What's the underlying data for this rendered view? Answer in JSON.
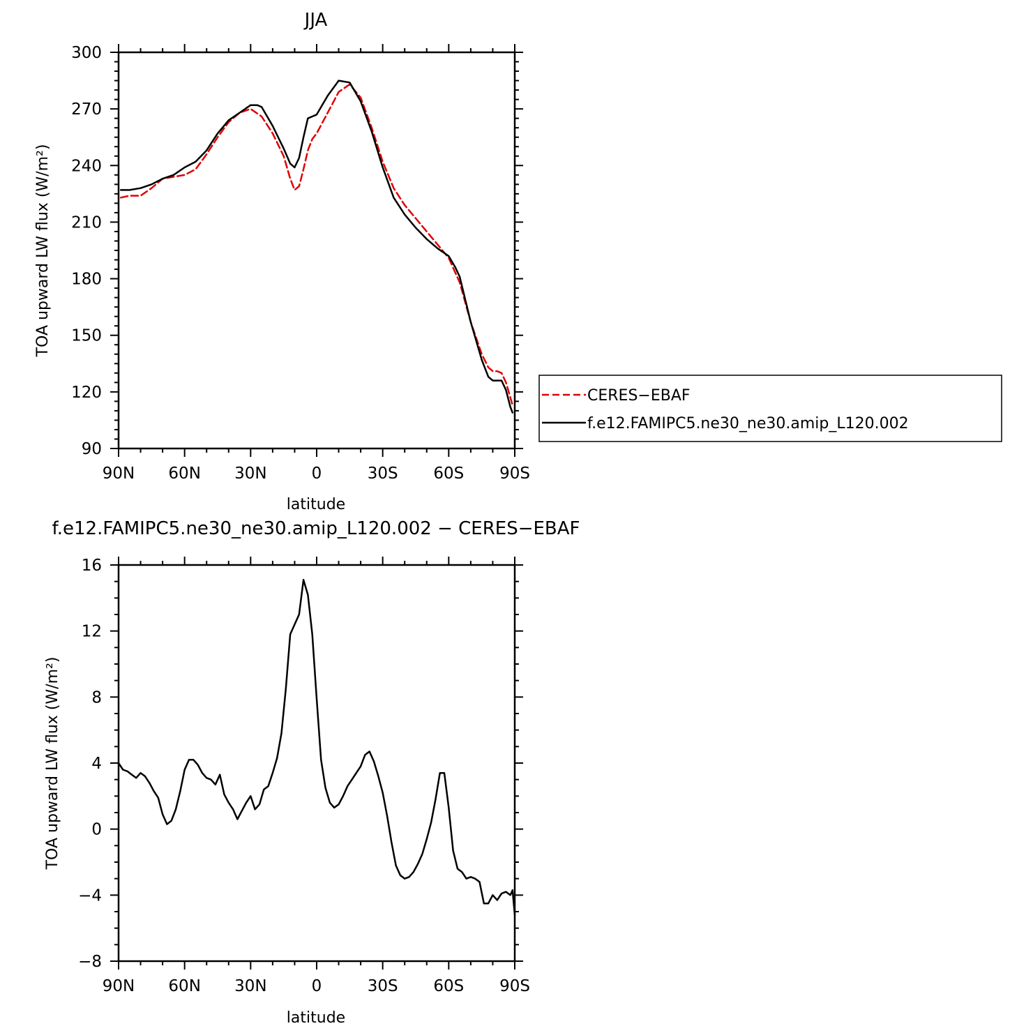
{
  "chart_data": [
    {
      "type": "line",
      "title": "JJA",
      "xlabel": "latitude",
      "ylabel": "TOA upward LW flux (W/m²)",
      "x_tick_labels": [
        "90N",
        "60N",
        "30N",
        "0",
        "30S",
        "60S",
        "90S"
      ],
      "x_tick_values": [
        90,
        60,
        30,
        0,
        -30,
        -60,
        -90
      ],
      "xlim": [
        90,
        -90
      ],
      "ylim": [
        90,
        300
      ],
      "yticks": [
        90,
        120,
        150,
        180,
        210,
        240,
        270,
        300
      ],
      "legend_position": "right",
      "series": [
        {
          "name": "CERES−EBAF",
          "color": "#e00000",
          "dash": "dashed",
          "x": [
            89,
            85,
            80,
            75,
            70,
            65,
            60,
            55,
            50,
            45,
            40,
            35,
            30,
            25,
            20,
            15,
            12,
            10,
            8,
            6,
            4,
            2,
            0,
            -5,
            -10,
            -15,
            -20,
            -25,
            -30,
            -35,
            -40,
            -45,
            -50,
            -55,
            -60,
            -65,
            -70,
            -75,
            -78,
            -80,
            -82,
            -84,
            -86,
            -88,
            -89
          ],
          "values": [
            223,
            224,
            224,
            228,
            233,
            234,
            235,
            238,
            246,
            255,
            263,
            268,
            270,
            266,
            257,
            245,
            233,
            227,
            229,
            238,
            248,
            254,
            257,
            268,
            279,
            283,
            276,
            260,
            242,
            228,
            219,
            212,
            205,
            198,
            191,
            178,
            157,
            140,
            133,
            131,
            131,
            130,
            125,
            117,
            113
          ]
        },
        {
          "name": "f.e12.FAMIPC5.ne30_ne30.amip_L120.002",
          "color": "#000000",
          "dash": "solid",
          "x": [
            89,
            85,
            80,
            75,
            70,
            65,
            60,
            55,
            50,
            45,
            40,
            35,
            30,
            27,
            25,
            20,
            15,
            12,
            10,
            8,
            6,
            4,
            2,
            0,
            -5,
            -10,
            -15,
            -20,
            -25,
            -30,
            -35,
            -40,
            -45,
            -50,
            -55,
            -60,
            -63,
            -65,
            -70,
            -75,
            -78,
            -80,
            -82,
            -84,
            -86,
            -88,
            -89
          ],
          "values": [
            227,
            227,
            228,
            230,
            233,
            235,
            239,
            242,
            248,
            257,
            264,
            268,
            272,
            272,
            271,
            261,
            249,
            241,
            239,
            244,
            255,
            265,
            266,
            267,
            277,
            285,
            284,
            274,
            258,
            239,
            223,
            214,
            207,
            201,
            196,
            192,
            186,
            181,
            157,
            137,
            128,
            126,
            126,
            126,
            121,
            112,
            109
          ]
        }
      ]
    },
    {
      "type": "line",
      "title": "f.e12.FAMIPC5.ne30_ne30.amip_L120.002 − CERES−EBAF",
      "xlabel": "latitude",
      "ylabel": "TOA upward LW flux (W/m²)",
      "x_tick_labels": [
        "90N",
        "60N",
        "30N",
        "0",
        "30S",
        "60S",
        "90S"
      ],
      "x_tick_values": [
        90,
        60,
        30,
        0,
        -30,
        -60,
        -90
      ],
      "xlim": [
        90,
        -90
      ],
      "ylim": [
        -8,
        16
      ],
      "yticks": [
        -8,
        -4,
        0,
        4,
        8,
        12,
        16
      ],
      "series": [
        {
          "color": "#000000",
          "x": [
            90,
            88,
            86,
            84,
            82,
            80,
            78,
            76,
            74,
            72,
            70,
            68,
            66,
            64,
            62,
            60,
            58,
            56,
            54,
            52,
            50,
            48,
            46,
            44,
            42,
            40,
            38,
            36,
            34,
            32,
            30,
            28,
            26,
            24,
            22,
            20,
            18,
            16,
            14,
            12,
            10,
            8,
            6,
            4,
            2,
            0,
            -2,
            -4,
            -6,
            -8,
            -10,
            -12,
            -14,
            -16,
            -18,
            -20,
            -22,
            -24,
            -26,
            -28,
            -30,
            -32,
            -34,
            -36,
            -38,
            -40,
            -42,
            -44,
            -46,
            -48,
            -50,
            -52,
            -54,
            -56,
            -58,
            -60,
            -62,
            -64,
            -66,
            -68,
            -70,
            -72,
            -74,
            -76,
            -78,
            -80,
            -82,
            -84,
            -86,
            -88,
            -89,
            -90
          ],
          "values": [
            4.0,
            3.6,
            3.5,
            3.3,
            3.1,
            3.4,
            3.2,
            2.8,
            2.3,
            1.9,
            0.9,
            0.3,
            0.5,
            1.2,
            2.3,
            3.6,
            4.2,
            4.2,
            3.9,
            3.4,
            3.1,
            3.0,
            2.7,
            3.3,
            2.1,
            1.6,
            1.2,
            0.6,
            1.1,
            1.6,
            2.0,
            1.2,
            1.5,
            2.4,
            2.6,
            3.4,
            4.3,
            5.8,
            8.5,
            11.8,
            12.4,
            13.0,
            15.1,
            14.2,
            11.8,
            7.9,
            4.2,
            2.5,
            1.6,
            1.3,
            1.5,
            2.0,
            2.6,
            3.0,
            3.4,
            3.8,
            4.5,
            4.7,
            4.1,
            3.2,
            2.2,
            0.8,
            -0.8,
            -2.2,
            -2.8,
            -3.0,
            -2.9,
            -2.6,
            -2.1,
            -1.5,
            -0.6,
            0.4,
            1.8,
            3.4,
            3.4,
            1.3,
            -1.3,
            -2.4,
            -2.6,
            -3.0,
            -2.9,
            -3.0,
            -3.2,
            -4.5,
            -4.5,
            -4.0,
            -4.3,
            -3.9,
            -3.8,
            -4.0,
            -3.7,
            -5.2
          ]
        }
      ]
    }
  ]
}
